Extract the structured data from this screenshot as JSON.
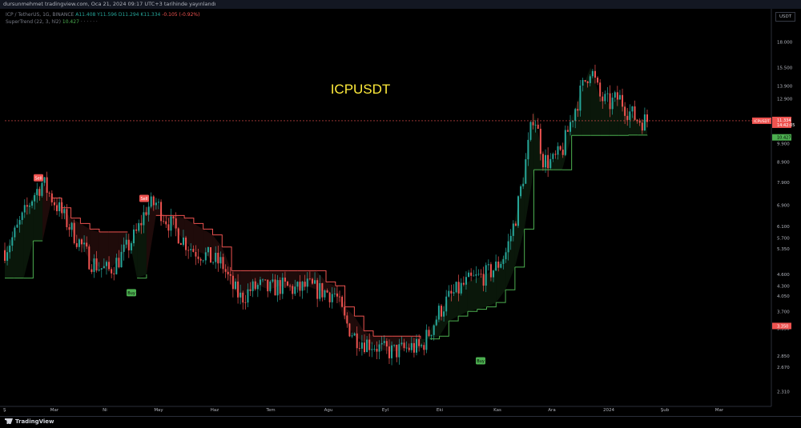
{
  "header": {
    "publish_line": "dursunmehmet tradingview.com, Oca 21, 2024 09:17 UTC+3 tarihinde yayınlandı"
  },
  "legend": {
    "symbol_line_prefix": "ICP / TetherUS, 1G, BINANCE",
    "open": "A11.408",
    "high": "Y11.596",
    "low": "D11.294",
    "close": "K11.334",
    "change": "-0.105 (-0.92%)",
    "indicator_name": "SuperTrend (22, 3, hl2)",
    "indicator_value": "10.427",
    "tiny_buttons": "· · · · · ·"
  },
  "brand": "TradingView",
  "price_unit": "USDT",
  "colors": {
    "background": "#000000",
    "up_candle": "#26a69a",
    "down_candle": "#ef5350",
    "supertrend_up": "#4caf50",
    "supertrend_down": "#ef5350",
    "title": "#ffeb3b",
    "last_price_tag": "#ef5350",
    "supertrend_tag": "#4caf50"
  },
  "chart_data": {
    "type": "candlestick",
    "title": "ICPUSDT",
    "y_scale": "log",
    "ylim": [
      2.2,
      20.0
    ],
    "y_ticks": [
      {
        "value": 2.31,
        "label": "2.310"
      },
      {
        "value": 2.67,
        "label": "2.670"
      },
      {
        "value": 2.85,
        "label": "2.850"
      },
      {
        "value": 3.35,
        "label": "3.350"
      },
      {
        "value": 3.7,
        "label": "3.700"
      },
      {
        "value": 4.05,
        "label": "4.050"
      },
      {
        "value": 4.3,
        "label": "4.300"
      },
      {
        "value": 4.6,
        "label": "4.600"
      },
      {
        "value": 5.35,
        "label": "5.350"
      },
      {
        "value": 5.7,
        "label": "5.700"
      },
      {
        "value": 6.1,
        "label": "6.100"
      },
      {
        "value": 6.9,
        "label": "6.900"
      },
      {
        "value": 7.9,
        "label": "7.900"
      },
      {
        "value": 8.9,
        "label": "8.900"
      },
      {
        "value": 9.9,
        "label": "9.900"
      },
      {
        "value": 12.9,
        "label": "12.900"
      },
      {
        "value": 13.9,
        "label": "13.900"
      },
      {
        "value": 15.5,
        "label": "15.500"
      },
      {
        "value": 18.0,
        "label": "18.000"
      }
    ],
    "x_ticks": [
      "Mar",
      "Ni",
      "May",
      "Haz",
      "Tem",
      "Agu",
      "Eyl",
      "Eki",
      "Kas",
      "Ara",
      "2024",
      "Şub",
      "Mar"
    ],
    "first_x_label": "Ş",
    "last_price": {
      "value": 11.334,
      "label": "ICPUSDT",
      "value_label": "11.334",
      "countdown": "14:42:05"
    },
    "supertrend_last": {
      "value": 10.427,
      "label": "10.427"
    },
    "level_tag": {
      "value": 3.35,
      "label": "3.350"
    },
    "signals": [
      {
        "type": "Sell",
        "label": "Sell",
        "price": 7.9
      },
      {
        "type": "Buy",
        "label": "Buy",
        "price": 4.4
      },
      {
        "type": "Sell",
        "label": "Sell",
        "price": 7.0
      },
      {
        "type": "Buy",
        "label": "Buy",
        "price": 2.95
      }
    ],
    "price_path": [
      5.3,
      5.8,
      6.5,
      7.3,
      7.9,
      7.2,
      6.6,
      6.0,
      5.5,
      5.0,
      4.8,
      4.7,
      5.0,
      5.4,
      5.9,
      6.8,
      7.0,
      6.4,
      6.0,
      5.6,
      5.3,
      5.2,
      5.0,
      4.9,
      4.3,
      4.0,
      4.2,
      4.3,
      4.2,
      4.3,
      4.25,
      4.2,
      4.3,
      4.2,
      4.15,
      4.1,
      3.5,
      3.2,
      3.1,
      3.05,
      2.95,
      2.92,
      2.95,
      3.0,
      2.98,
      3.3,
      3.7,
      4.0,
      4.2,
      4.4,
      4.5,
      4.6,
      4.8,
      5.2,
      6.3,
      8.5,
      12.0,
      9.0,
      8.9,
      9.5,
      11.5,
      13.5,
      15.5,
      13.0,
      12.5,
      13.0,
      12.0,
      11.4,
      11.334
    ],
    "supertrend_path": [
      4.5,
      4.5,
      4.5,
      5.6,
      5.6,
      7.2,
      6.8,
      6.4,
      6.2,
      6.0,
      5.9,
      5.9,
      5.9,
      5.9,
      4.5,
      4.6,
      6.5,
      6.5,
      6.5,
      6.4,
      6.2,
      6.0,
      5.8,
      5.4,
      4.7,
      4.7,
      4.7,
      4.7,
      4.7,
      4.7,
      4.7,
      4.7,
      4.7,
      4.7,
      4.4,
      4.3,
      3.8,
      3.6,
      3.3,
      3.2,
      3.2,
      3.2,
      3.2,
      3.2,
      3.15,
      3.15,
      3.2,
      3.5,
      3.6,
      3.7,
      3.75,
      3.8,
      3.9,
      4.2,
      4.8,
      6.0,
      8.5,
      8.5,
      8.5,
      8.5,
      10.4,
      10.4,
      10.4,
      10.4,
      10.4,
      10.4,
      10.42,
      10.42,
      10.427
    ],
    "supertrend_direction": [
      "up",
      "up",
      "up",
      "up",
      "up",
      "down",
      "down",
      "down",
      "down",
      "down",
      "down",
      "down",
      "down",
      "down",
      "up",
      "up",
      "down",
      "down",
      "down",
      "down",
      "down",
      "down",
      "down",
      "down",
      "down",
      "down",
      "down",
      "down",
      "down",
      "down",
      "down",
      "down",
      "down",
      "down",
      "down",
      "down",
      "down",
      "down",
      "down",
      "down",
      "down",
      "down",
      "down",
      "down",
      "down",
      "up",
      "up",
      "up",
      "up",
      "up",
      "up",
      "up",
      "up",
      "up",
      "up",
      "up",
      "up",
      "up",
      "up",
      "up",
      "up",
      "up",
      "up",
      "up",
      "up",
      "up",
      "up",
      "up",
      "up"
    ]
  }
}
